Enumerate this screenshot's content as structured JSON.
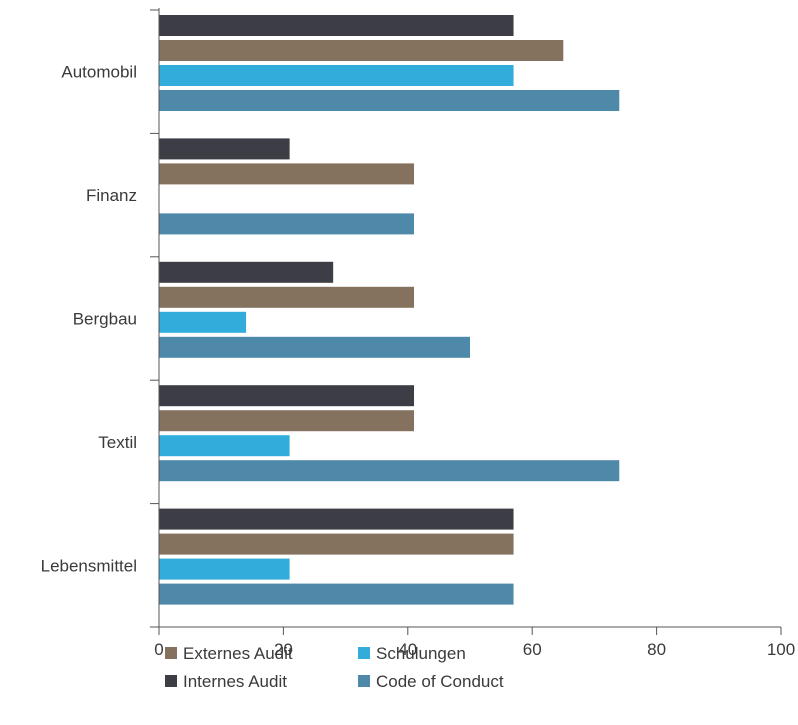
{
  "chart_data": {
    "type": "bar",
    "orientation": "horizontal",
    "categories": [
      "Automobil",
      "Finanz",
      "Bergbau",
      "Textil",
      "Lebensmittel"
    ],
    "series": [
      {
        "name": "Internes Audit",
        "color": "#3d3d45",
        "values": [
          57,
          21,
          28,
          41,
          57
        ]
      },
      {
        "name": "Externes Audit",
        "color": "#84725f",
        "values": [
          65,
          41,
          41,
          41,
          57
        ]
      },
      {
        "name": "Schulungen",
        "color": "#32acdb",
        "values": [
          57,
          0,
          14,
          21,
          21
        ]
      },
      {
        "name": "Code of Conduct",
        "color": "#4f89aa",
        "values": [
          74,
          41,
          50,
          74,
          57
        ]
      }
    ],
    "xlim": [
      0,
      100
    ],
    "xticks": [
      "0",
      "20",
      "40",
      "60",
      "80",
      "100"
    ],
    "grid": false,
    "legend": {
      "position": "bottom",
      "items": [
        {
          "label": "Externes Audit",
          "color": "#84725f"
        },
        {
          "label": "Schulungen",
          "color": "#32acdb"
        },
        {
          "label": "Internes Audit",
          "color": "#3d3d45"
        },
        {
          "label": "Code of Conduct",
          "color": "#4f89aa"
        }
      ]
    },
    "axis_color": "#555555"
  }
}
